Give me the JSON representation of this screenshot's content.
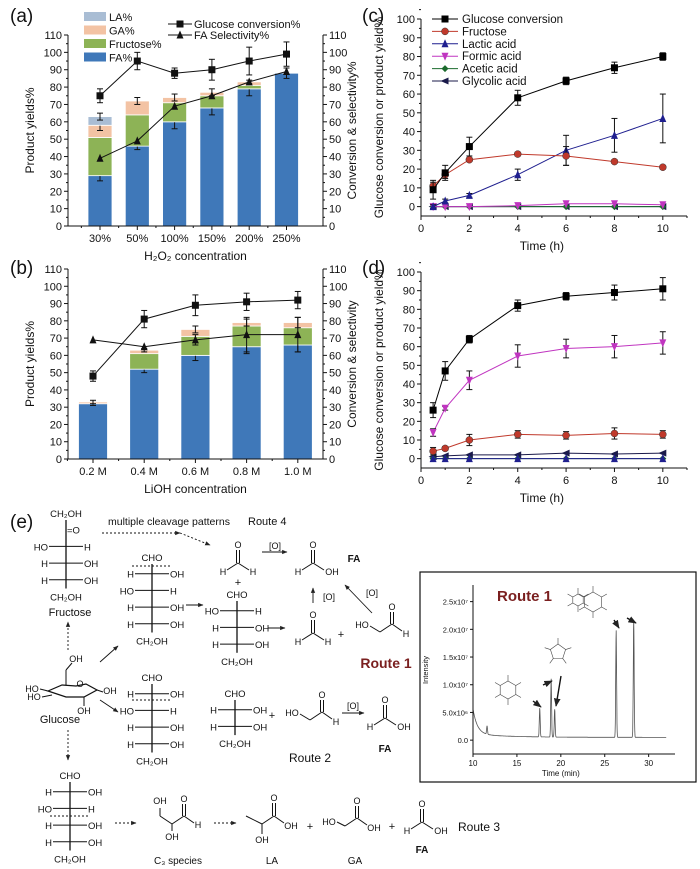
{
  "colors": {
    "fa": "#3f78b9",
    "fructose": "#8db356",
    "ga": "#f3c3a4",
    "la": "#a9bdd4",
    "route1": "#7a1f1f"
  },
  "chart_data": [
    {
      "id": "a",
      "type": "bar",
      "panel_label": "(a)",
      "categories": [
        "30%",
        "50%",
        "100%",
        "150%",
        "200%",
        "250%"
      ],
      "xlabel": "H₂O₂ concentration",
      "ylabel": "Product yields%",
      "ylabel_right": "Conversion & selectivity%",
      "ylim": [
        0,
        110
      ],
      "yticks": [
        "0",
        "10",
        "20",
        "30",
        "40",
        "50",
        "60",
        "70",
        "80",
        "90",
        "100",
        "110"
      ],
      "stacks": [
        {
          "name": "FA%",
          "color_key": "fa",
          "values": [
            29,
            46,
            60,
            68,
            79,
            88
          ],
          "err": [
            3,
            2,
            4,
            4,
            4,
            3
          ]
        },
        {
          "name": "Fructose%",
          "color_key": "fructose",
          "values": [
            22,
            18,
            11,
            7,
            2,
            0
          ]
        },
        {
          "name": "GA%",
          "color_key": "ga",
          "values": [
            7,
            8,
            3,
            2,
            2,
            0
          ],
          "err": [
            3,
            2,
            2,
            2,
            1,
            0
          ]
        },
        {
          "name": "LA%",
          "color_key": "la",
          "values": [
            5,
            0,
            0,
            0,
            0,
            0
          ],
          "err": [
            2,
            0,
            0,
            0,
            0,
            0
          ]
        }
      ],
      "lines": [
        {
          "name": "Glucose conversion%",
          "marker": "square",
          "values": [
            75,
            95,
            88,
            90,
            95,
            99
          ],
          "err": [
            4,
            5,
            3,
            6,
            8,
            7
          ]
        },
        {
          "name": "FA Selectivity%",
          "marker": "triangle-up",
          "values": [
            39,
            49,
            69,
            75,
            83,
            89
          ],
          "err": [
            0,
            0,
            0,
            0,
            0,
            0
          ]
        }
      ],
      "legend": true
    },
    {
      "id": "b",
      "type": "bar",
      "panel_label": "(b)",
      "categories": [
        "0.2 M",
        "0.4 M",
        "0.6 M",
        "0.8 M",
        "1.0 M"
      ],
      "xlabel": "LiOH concentration",
      "ylabel": "Product yields%",
      "ylabel_right": "Conversion & selectivity",
      "ylim": [
        0,
        110
      ],
      "yticks": [
        "0",
        "10",
        "20",
        "30",
        "40",
        "50",
        "60",
        "70",
        "80",
        "90",
        "100",
        "110"
      ],
      "stacks": [
        {
          "name": "FA%",
          "color_key": "fa",
          "values": [
            32,
            52,
            60,
            65,
            66
          ],
          "err": [
            1,
            2,
            3,
            4,
            4
          ]
        },
        {
          "name": "Fructose%",
          "color_key": "fructose",
          "values": [
            0,
            9,
            11,
            12,
            10
          ]
        },
        {
          "name": "GA%",
          "color_key": "ga",
          "values": [
            1,
            2,
            4,
            2,
            3
          ],
          "err": [
            1,
            1,
            2,
            2,
            3
          ]
        },
        {
          "name": "LA%",
          "color_key": "la",
          "values": [
            0,
            0,
            0,
            0,
            0
          ]
        }
      ],
      "lines": [
        {
          "name": "Glucose conversion%",
          "marker": "square",
          "values": [
            48,
            81,
            89,
            91,
            92
          ],
          "err": [
            3,
            5,
            6,
            5,
            5
          ]
        },
        {
          "name": "FA Selectivity%",
          "marker": "triangle-up",
          "values": [
            69,
            65,
            69,
            72,
            72
          ],
          "err": [
            0,
            0,
            3,
            10,
            10
          ]
        }
      ],
      "legend": false
    },
    {
      "id": "c",
      "type": "line",
      "panel_label": "(c)",
      "x": [
        0.5,
        1,
        2,
        4,
        6,
        8,
        10
      ],
      "xlim": [
        0,
        11
      ],
      "xticks": [
        "0",
        "2",
        "4",
        "6",
        "8",
        "10"
      ],
      "ylim": [
        -5,
        100
      ],
      "yticks": [
        "0",
        "10",
        "20",
        "30",
        "40",
        "50",
        "60",
        "70",
        "80",
        "90",
        "100"
      ],
      "xlabel": "Time (h)",
      "ylabel": "Glucose conversion or product yield%",
      "series": [
        {
          "name": "Glucose conversion",
          "color": "#000000",
          "marker": "square",
          "values": [
            9,
            18,
            32,
            58,
            67,
            74,
            80
          ],
          "err": [
            5,
            4,
            5,
            4,
            2,
            3,
            2
          ]
        },
        {
          "name": "Fructose",
          "color": "#c0392b",
          "marker": "circle",
          "values": [
            11,
            17,
            25,
            28,
            27,
            24,
            21
          ],
          "err": [
            2,
            2,
            1,
            1,
            5,
            1,
            1
          ]
        },
        {
          "name": "Lactic acid",
          "color": "#1f1f8f",
          "marker": "triangle-up",
          "values": [
            0,
            3,
            6,
            17,
            30,
            38,
            47
          ],
          "err": [
            1,
            1,
            1,
            3,
            8,
            9,
            13
          ]
        },
        {
          "name": "Formic acid",
          "color": "#c035c0",
          "marker": "triangle-down",
          "values": [
            0,
            0,
            0,
            0.5,
            1.5,
            1.5,
            1
          ],
          "err": [
            0,
            0,
            0,
            0,
            0,
            0,
            0
          ]
        },
        {
          "name": "Acetic acid",
          "color": "#1c6b2e",
          "marker": "diamond",
          "values": [
            0,
            0,
            0,
            0,
            0,
            0,
            0
          ],
          "err": [
            0,
            0,
            0,
            0,
            0,
            0,
            0
          ]
        },
        {
          "name": "Glycolic acid",
          "color": "#1a1a4a",
          "marker": "triangle-left",
          "values": [
            0,
            0,
            0,
            0,
            0,
            0,
            0
          ],
          "err": [
            0,
            0,
            0,
            0,
            0,
            0,
            0
          ]
        }
      ],
      "legend": true
    },
    {
      "id": "d",
      "type": "line",
      "panel_label": "(d)",
      "x": [
        0.5,
        1,
        2,
        4,
        6,
        8,
        10
      ],
      "xlim": [
        0,
        11
      ],
      "xticks": [
        "0",
        "2",
        "4",
        "6",
        "8",
        "10"
      ],
      "ylim": [
        -5,
        100
      ],
      "yticks": [
        "0",
        "10",
        "20",
        "30",
        "40",
        "50",
        "60",
        "70",
        "80",
        "90",
        "100"
      ],
      "xlabel": "Time (h)",
      "ylabel": "Glucose conversion or product yield%",
      "series": [
        {
          "name": "Glucose conversion",
          "color": "#000000",
          "marker": "square",
          "values": [
            26,
            47,
            64,
            82,
            87,
            89,
            91
          ],
          "err": [
            4,
            5,
            2,
            3,
            2,
            4,
            6
          ]
        },
        {
          "name": "Fructose",
          "color": "#c0392b",
          "marker": "circle",
          "values": [
            4,
            5.5,
            10,
            13,
            12.5,
            13.5,
            13
          ],
          "err": [
            2,
            1,
            3,
            2,
            2,
            3,
            2
          ]
        },
        {
          "name": "Lactic acid",
          "color": "#1f1f8f",
          "marker": "triangle-up",
          "values": [
            0,
            0,
            0,
            0,
            0,
            0,
            0
          ],
          "err": [
            0,
            0,
            0,
            0,
            0,
            0,
            0
          ]
        },
        {
          "name": "Formic acid",
          "color": "#c035c0",
          "marker": "triangle-down",
          "values": [
            14,
            27,
            42,
            55,
            59,
            60,
            62
          ],
          "err": [
            2,
            1,
            5,
            6,
            5,
            6,
            6
          ]
        },
        {
          "name": "Acetic acid",
          "color": "#1c6b2e",
          "marker": "diamond",
          "values": [
            0,
            0,
            0,
            0,
            0,
            0,
            0
          ],
          "err": [
            0,
            0,
            0,
            0,
            0,
            0,
            0
          ]
        },
        {
          "name": "Glycolic acid",
          "color": "#1a1a4a",
          "marker": "triangle-left",
          "values": [
            1,
            1.5,
            2,
            2,
            3,
            2.5,
            3
          ],
          "err": [
            0,
            0,
            0,
            0,
            0,
            0,
            0
          ]
        }
      ],
      "legend": false
    },
    {
      "id": "inset",
      "type": "line",
      "title": "Route 1",
      "xlabel": "Time (min)",
      "ylabel": "Intensity",
      "xlim": [
        10,
        33
      ],
      "xticks": [
        "10",
        "15",
        "20",
        "25",
        "30"
      ],
      "ylim": [
        -2500000,
        28000000
      ],
      "ytick_values": [
        0,
        5000000,
        10000000,
        15000000,
        20000000,
        25000000
      ],
      "yticks": [
        "0.0",
        "5.0x10⁶",
        "1.0x10⁷",
        "1.5x10⁷",
        "2.0x10⁷",
        "2.5x10⁷"
      ],
      "x_range": [
        10,
        32
      ],
      "peaks": [
        {
          "t": 11.6,
          "h": 1500000
        },
        {
          "t": 17.6,
          "h": 5200000
        },
        {
          "t": 18.9,
          "h": 10500000
        },
        {
          "t": 19.3,
          "h": 5000000
        },
        {
          "t": 26.3,
          "h": 19300000
        },
        {
          "t": 28.3,
          "h": 21000000
        }
      ]
    }
  ],
  "scheme": {
    "panel_label": "(e)",
    "cleavage_label": "multiple cleavage patterns",
    "route4": "Route 4",
    "route1": "Route 1",
    "route2": "Route 2",
    "route3": "Route 3",
    "fa_label": "FA",
    "fructose_label": "Fructose",
    "glucose_label": "Glucose",
    "c3_label": "C₃ species",
    "la_label": "LA",
    "ga_label": "GA",
    "plus": "+",
    "oxidant": "[O]",
    "fischer": {
      "fructose": {
        "top": "CH₂OH",
        "rows": [
          [
            "",
            "=O"
          ],
          [
            "HO",
            "H"
          ],
          [
            "H",
            "OH"
          ],
          [
            "H",
            "OH"
          ]
        ],
        "bottom": "CH₂OH"
      },
      "glucose_a": {
        "top": "CHO",
        "rows": [
          [
            "H",
            "OH"
          ],
          [
            "HO",
            "H"
          ],
          [
            "H",
            "OH"
          ],
          [
            "H",
            "OH"
          ]
        ],
        "bottom": "CH₂OH"
      },
      "arabinose": {
        "top": "CHO",
        "rows": [
          [
            "HO",
            "H"
          ],
          [
            "H",
            "OH"
          ],
          [
            "H",
            "OH"
          ]
        ],
        "bottom": "CH₂OH"
      },
      "glucose_b": {
        "top": "CHO",
        "rows": [
          [
            "H",
            "OH"
          ],
          [
            "HO",
            "H"
          ],
          [
            "H",
            "OH"
          ],
          [
            "H",
            "OH"
          ]
        ],
        "bottom": "CH₂OH"
      },
      "erythrose": {
        "top": "CHO",
        "rows": [
          [
            "H",
            "OH"
          ],
          [
            "H",
            "OH"
          ]
        ],
        "bottom": "CH₂OH"
      },
      "glucose_c": {
        "top": "CHO",
        "rows": [
          [
            "H",
            "OH"
          ],
          [
            "HO",
            "H"
          ],
          [
            "H",
            "OH"
          ],
          [
            "H",
            "OH"
          ]
        ],
        "bottom": "CH₂OH"
      }
    },
    "molecules": {
      "formaldehyde": {
        "o": "O",
        "l": "H",
        "r": "H"
      },
      "formic_acid": {
        "o": "O",
        "l": "H",
        "r": "OH"
      },
      "glycolaldehyde": {
        "ho": "HO",
        "o": "O",
        "h": "H"
      },
      "glycolic_acid": {
        "ho": "HO",
        "o": "O",
        "oh": "OH"
      },
      "lactic_acid": {
        "o": "O",
        "oh": "OH",
        "oh2": "OH"
      },
      "c3": {
        "oh": "OH",
        "o": "O",
        "h": "H",
        "oh2": "OH"
      },
      "glucose_ring": {
        "oh6": "OH",
        "ho4": "HO",
        "ho3": "HO",
        "o": "O",
        "oh1": "OH",
        "oh2": "OH"
      }
    }
  }
}
